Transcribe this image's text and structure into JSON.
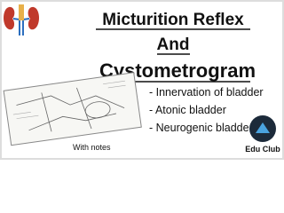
{
  "title": {
    "line1": "Micturition Reflex",
    "line2": "And",
    "line3": "Cystometrogram"
  },
  "bullets": [
    "- Innervation of bladder",
    "- Atonic bladder",
    "- Neurogenic bladder"
  ],
  "note": "With notes",
  "logo": {
    "label": "Edu Club"
  }
}
